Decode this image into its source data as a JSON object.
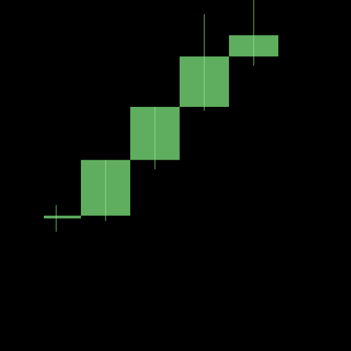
{
  "chart_data": {
    "type": "candlestick",
    "title": "",
    "xlabel": "",
    "ylabel": "",
    "axes_visible": false,
    "grid": false,
    "ylim": [
      0,
      100
    ],
    "colors": {
      "background": "#000000",
      "up": "#5fae5f",
      "wick": "#7ccc7c",
      "inner_line": "#8fd98f"
    },
    "candles": [
      {
        "open": 19.0,
        "close": 20.0,
        "low": 14.0,
        "high": 24.0
      },
      {
        "open": 20.0,
        "close": 41.0,
        "low": 18.0,
        "high": 41.0
      },
      {
        "open": 41.0,
        "close": 61.0,
        "low": 37.5,
        "high": 61.0
      },
      {
        "open": 61.0,
        "close": 80.0,
        "low": 59.5,
        "high": 96.0
      },
      {
        "open": 80.0,
        "close": 88.0,
        "low": 76.5,
        "high": 102.0
      }
    ]
  }
}
